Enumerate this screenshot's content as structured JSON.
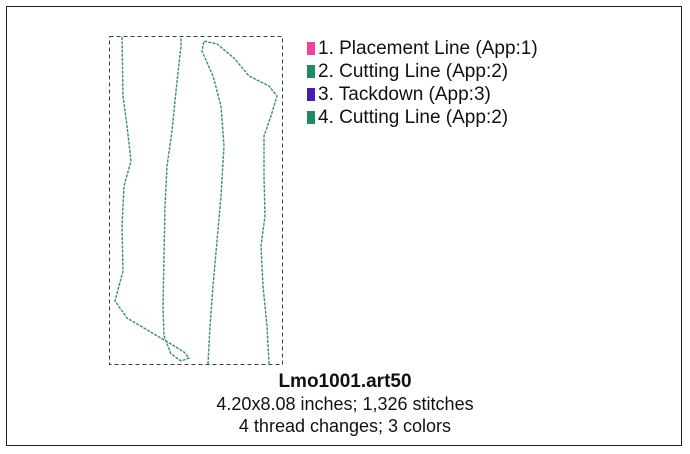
{
  "legend": {
    "items": [
      {
        "label": "1.  Placement Line (App:1)",
        "color": "#f0449c"
      },
      {
        "label": "2.  Cutting Line (App:2)",
        "color": "#1f8a63"
      },
      {
        "label": "3.  Tackdown (App:3)",
        "color": "#4a1bb0"
      },
      {
        "label": "4.  Cutting Line (App:2)",
        "color": "#1f8a63"
      }
    ]
  },
  "design": {
    "filename": "Lmo1001.art50",
    "size_stitches": "4.20x8.08 inches; 1,326 stitches",
    "threads_colors": "4 thread changes; 3 colors"
  },
  "colors": {
    "stitch": "#3a8f70",
    "border": "#3b3b66"
  }
}
